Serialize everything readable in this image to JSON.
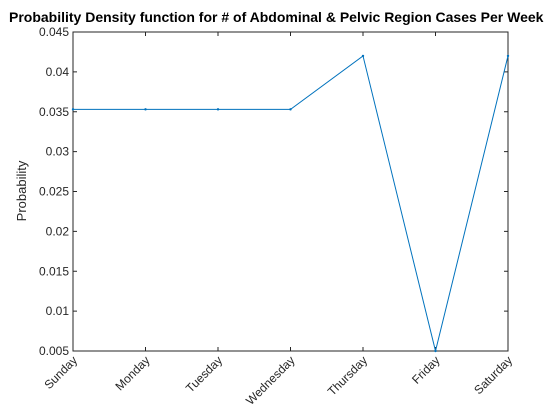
{
  "chart_data": {
    "type": "line",
    "title": "Probability Density function for # of Abdominal & Pelvic Region Cases Per Week",
    "xlabel": "",
    "ylabel": "Probability",
    "categories": [
      "Sunday",
      "Monday",
      "Tuesday",
      "Wednesday",
      "Thursday",
      "Friday",
      "Saturday"
    ],
    "yticks": [
      "0.005",
      "0.01",
      "0.015",
      "0.02",
      "0.025",
      "0.03",
      "0.035",
      "0.04",
      "0.045"
    ],
    "ylim": [
      0.005,
      0.045
    ],
    "grid": false,
    "legend": "none",
    "series": [
      {
        "values": [
          0.0353,
          0.0353,
          0.0353,
          0.0353,
          0.042,
          0.005,
          0.042
        ]
      }
    ],
    "colors": {
      "line": "#0072BD",
      "axis": "#262626"
    }
  }
}
